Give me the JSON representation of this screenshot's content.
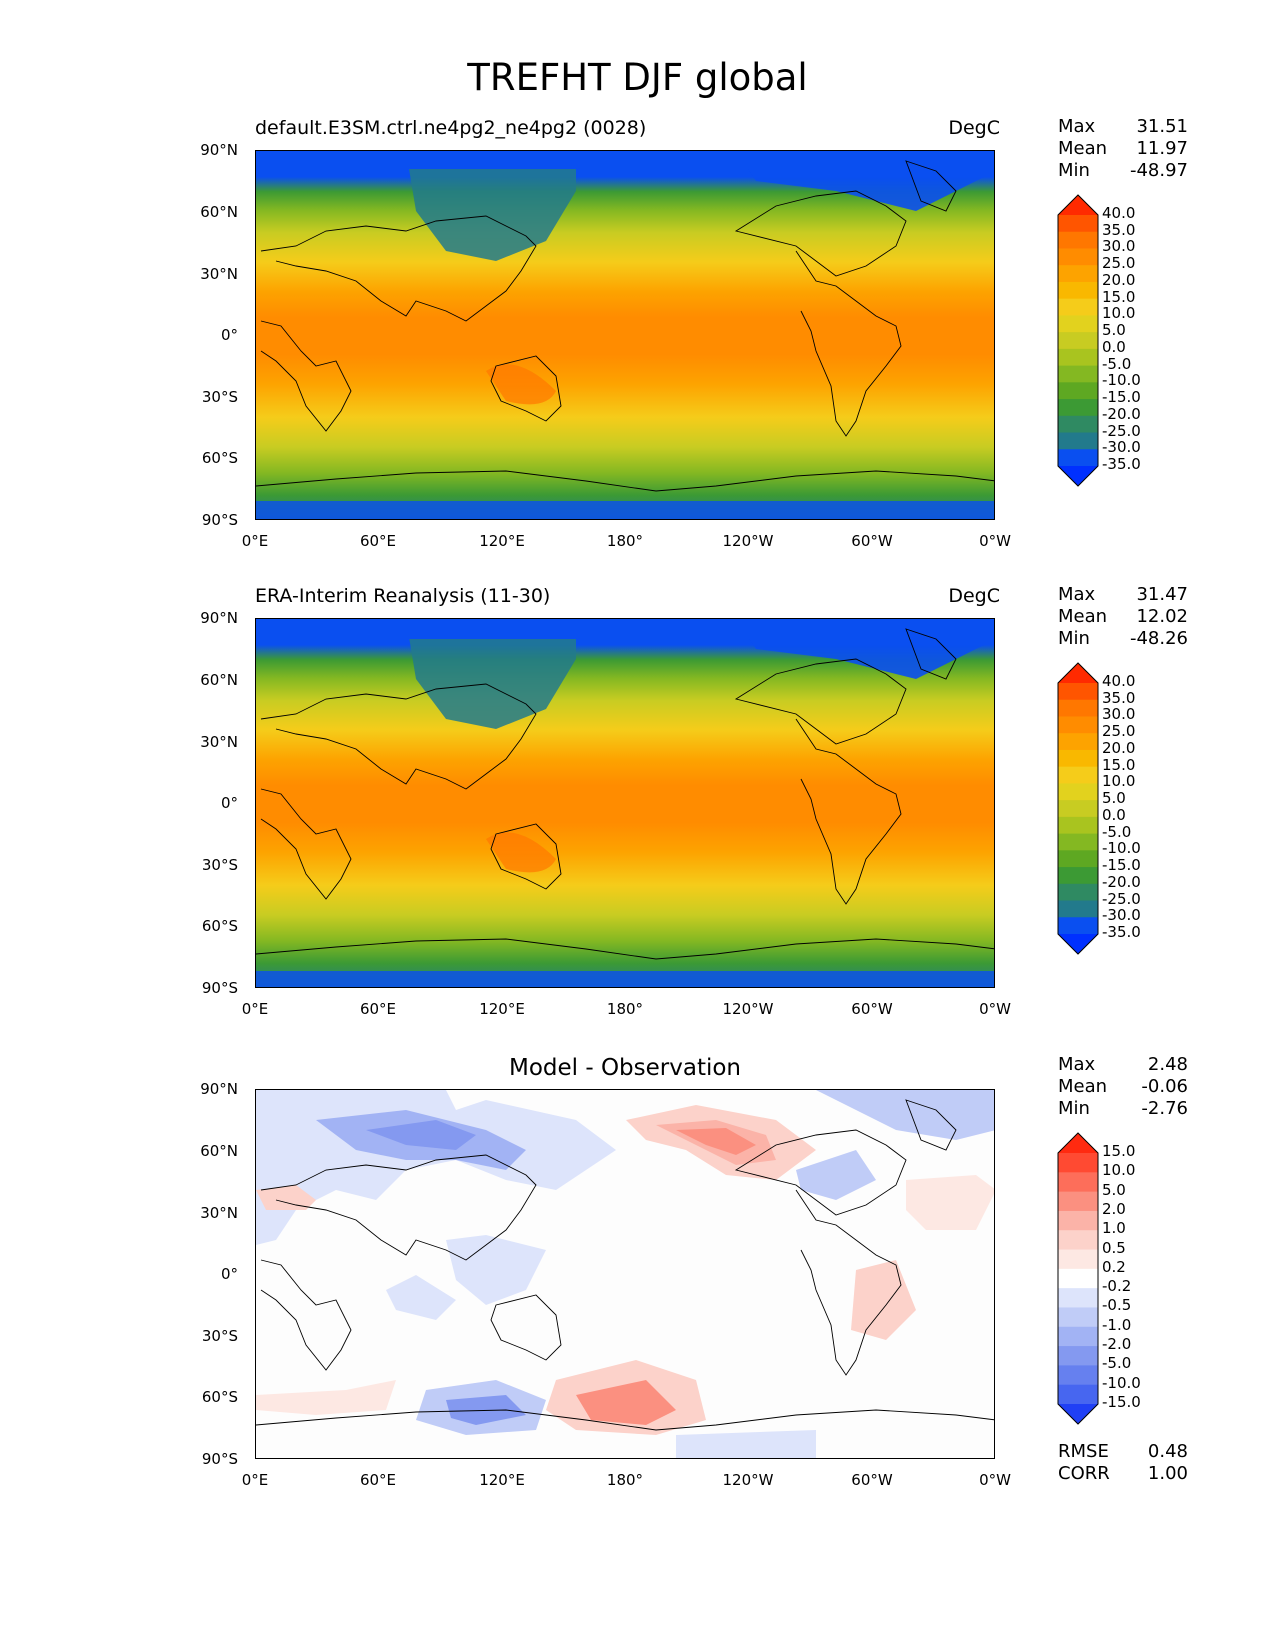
{
  "title": "TREFHT DJF global",
  "panels": [
    {
      "id": "model",
      "title_left": "default.E3SM.ctrl.ne4pg2_ne4pg2 (0028)",
      "title_right": "DegC",
      "title_center": "",
      "stats": {
        "max_label": "Max",
        "max": "31.51",
        "mean_label": "Mean",
        "mean": "11.97",
        "min_label": "Min",
        "min": "-48.97"
      },
      "colorbar_levels": [
        "40.0",
        "35.0",
        "30.0",
        "25.0",
        "20.0",
        "15.0",
        "10.0",
        "5.0",
        "0.0",
        "-5.0",
        "-10.0",
        "-15.0",
        "-20.0",
        "-25.0",
        "-30.0",
        "-35.0"
      ],
      "colorbar_colors": [
        "#ff2a00",
        "#ff5500",
        "#ff7700",
        "#ff8c00",
        "#fda300",
        "#f9b800",
        "#f5cc1a",
        "#e2d21e",
        "#c8cc22",
        "#a9c41f",
        "#84b822",
        "#5ea822",
        "#3c9a34",
        "#2f8a62",
        "#227a8c",
        "#0a4ff0",
        "#0030ff"
      ]
    },
    {
      "id": "obs",
      "title_left": "ERA-Interim Reanalysis (11-30)",
      "title_right": "DegC",
      "title_center": "",
      "stats": {
        "max_label": "Max",
        "max": "31.47",
        "mean_label": "Mean",
        "mean": "12.02",
        "min_label": "Min",
        "min": "-48.26"
      },
      "colorbar_levels": [
        "40.0",
        "35.0",
        "30.0",
        "25.0",
        "20.0",
        "15.0",
        "10.0",
        "5.0",
        "0.0",
        "-5.0",
        "-10.0",
        "-15.0",
        "-20.0",
        "-25.0",
        "-30.0",
        "-35.0"
      ],
      "colorbar_colors": [
        "#ff2a00",
        "#ff5500",
        "#ff7700",
        "#ff8c00",
        "#fda300",
        "#f9b800",
        "#f5cc1a",
        "#e2d21e",
        "#c8cc22",
        "#a9c41f",
        "#84b822",
        "#5ea822",
        "#3c9a34",
        "#2f8a62",
        "#227a8c",
        "#0a4ff0",
        "#0030ff"
      ]
    },
    {
      "id": "diff",
      "title_left": "",
      "title_right": "",
      "title_center": "Model - Observation",
      "stats": {
        "max_label": "Max",
        "max": "2.48",
        "mean_label": "Mean",
        "mean": "-0.06",
        "min_label": "Min",
        "min": "-2.76"
      },
      "colorbar_levels": [
        "15.0",
        "10.0",
        "5.0",
        "2.0",
        "1.0",
        "0.5",
        "0.2",
        "-0.2",
        "-0.5",
        "-1.0",
        "-2.0",
        "-5.0",
        "-10.0",
        "-15.0"
      ],
      "colorbar_colors": [
        "#ff2a10",
        "#ff4a32",
        "#fd6e5a",
        "#fb9080",
        "#fbb3a8",
        "#fcd2ca",
        "#fde8e3",
        "#ffffff",
        "#dde4fb",
        "#c0ccf7",
        "#a2b3f4",
        "#8499f0",
        "#6680ef",
        "#4766f0",
        "#2040f5"
      ],
      "metrics": {
        "rmse_label": "RMSE",
        "rmse": "0.48",
        "corr_label": "CORR",
        "corr": "1.00"
      }
    }
  ],
  "axes": {
    "y_ticks": [
      "90°N",
      "60°N",
      "30°N",
      "0°",
      "30°S",
      "60°S",
      "90°S"
    ],
    "x_ticks": [
      "0°E",
      "60°E",
      "120°E",
      "180°",
      "120°W",
      "60°W",
      "0°W"
    ]
  }
}
